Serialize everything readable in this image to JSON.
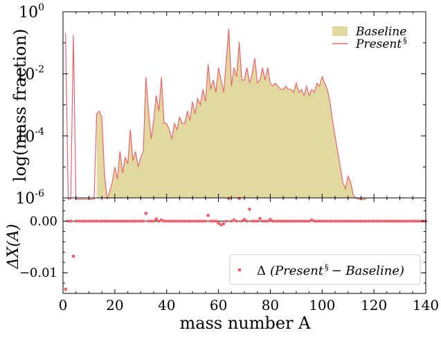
{
  "chart_data": [
    {
      "type": "area",
      "ylabel": "log(mass fraction)",
      "xlim": [
        0,
        140
      ],
      "ylim": [
        1e-06,
        1
      ],
      "yscale": "log",
      "y_ticks": [
        {
          "base": "10",
          "exp": "0"
        },
        {
          "base": "10",
          "exp": "-2"
        },
        {
          "base": "10",
          "exp": "-4"
        },
        {
          "base": "10",
          "exp": "-6"
        }
      ],
      "legend": {
        "placement": "top-right",
        "entries": [
          "Baseline",
          "Present",
          "§"
        ]
      },
      "series": [
        {
          "name": "Baseline",
          "style": "filled",
          "color": "#e2d9a0"
        },
        {
          "name": "Present§",
          "style": "line",
          "color": "#e8636e"
        }
      ],
      "x": [
        1,
        2,
        3,
        4,
        5,
        6,
        7,
        8,
        9,
        10,
        11,
        12,
        13,
        14,
        15,
        16,
        17,
        18,
        19,
        20,
        21,
        22,
        23,
        24,
        25,
        26,
        27,
        28,
        29,
        30,
        31,
        32,
        33,
        34,
        35,
        36,
        37,
        38,
        39,
        40,
        41,
        42,
        43,
        44,
        45,
        46,
        47,
        48,
        49,
        50,
        51,
        52,
        53,
        54,
        55,
        56,
        57,
        58,
        59,
        60,
        61,
        62,
        63,
        64,
        65,
        66,
        67,
        68,
        69,
        70,
        71,
        72,
        73,
        74,
        75,
        76,
        77,
        78,
        79,
        80,
        81,
        82,
        83,
        84,
        85,
        86,
        87,
        88,
        89,
        90,
        91,
        92,
        93,
        94,
        95,
        96,
        97,
        98,
        99,
        100,
        101,
        102,
        103,
        104,
        105,
        106,
        107,
        108,
        109,
        110,
        111,
        112,
        113,
        114,
        115,
        116,
        117
      ],
      "log10_values": [
        -0.68,
        -9,
        -9,
        -0.75,
        -9,
        -9,
        -9,
        -9,
        -9,
        -9,
        -9,
        -9,
        -3.3,
        -3.2,
        -3.4,
        -5.2,
        -6.5,
        -5.8,
        -5.5,
        -5.0,
        -5.4,
        -4.5,
        -5.2,
        -4.7,
        -4.9,
        -3.8,
        -4.8,
        -4.5,
        -5.0,
        -4.7,
        -4.5,
        -2.1,
        -3.2,
        -4.1,
        -3.5,
        -2.7,
        -3.2,
        -2.1,
        -3.6,
        -3.6,
        -3.8,
        -4.1,
        -3.6,
        -3.8,
        -3.4,
        -3.6,
        -3.6,
        -3.2,
        -3.5,
        -2.9,
        -3.3,
        -2.8,
        -3.0,
        -2.5,
        -2.9,
        -1.7,
        -2.5,
        -2.2,
        -2.6,
        -1.8,
        -2.2,
        -2.6,
        -1.6,
        -0.55,
        -2.4,
        -1.8,
        -2.1,
        -0.97,
        -2.2,
        -2.2,
        -1.8,
        -2.3,
        -2.0,
        -1.5,
        -2.3,
        -2.2,
        -1.8,
        -2.2,
        -1.8,
        -2.3,
        -2.4,
        -2.3,
        -2.4,
        -2.5,
        -2.5,
        -2.4,
        -2.5,
        -2.5,
        -2.6,
        -2.3,
        -2.6,
        -2.5,
        -2.7,
        -2.4,
        -2.7,
        -2.5,
        -2.6,
        -2.3,
        -2.4,
        -2.1,
        -2.3,
        -2.5,
        -2.9,
        -3.5,
        -4.0,
        -4.5,
        -5.0,
        -5.5,
        -5.7,
        -5.3,
        -5.5,
        -5.9,
        -6.0,
        -6.3,
        -6.2,
        -6.6,
        -7.5
      ]
    },
    {
      "type": "scatter",
      "ylabel": "ΔX(A)",
      "xlabel": "mass number A",
      "xlim": [
        0,
        140
      ],
      "ylim": [
        -0.014,
        0.0045
      ],
      "x_ticks": [
        "0",
        "20",
        "40",
        "60",
        "80",
        "100",
        "120",
        "140"
      ],
      "y_ticks": [
        "0.00",
        "−0.01"
      ],
      "legend": {
        "placement": "lower-right",
        "entry_prefix": "Δ",
        "entry": "Present",
        "entry_sup": "§",
        "entry_suffix": "− Baseline"
      },
      "series": [
        {
          "name": "Δ (Present§ − Baseline)",
          "color": "#e8636e",
          "points": [
            [
              1,
              -0.0132
            ],
            [
              4,
              -0.0068
            ],
            [
              32,
              0.0015
            ],
            [
              36,
              0.0004
            ],
            [
              38,
              0.0002
            ],
            [
              56,
              0.0011
            ],
            [
              60,
              -0.0004
            ],
            [
              61,
              -0.0007
            ],
            [
              62,
              -0.0005
            ],
            [
              64,
              0.0044
            ],
            [
              66,
              0.0002
            ],
            [
              68,
              0.0044
            ],
            [
              70,
              0.0003
            ],
            [
              72,
              0.0023
            ],
            [
              76,
              0.0005
            ],
            [
              80,
              0.0003
            ],
            [
              96,
              0.0002
            ]
          ]
        }
      ]
    }
  ]
}
